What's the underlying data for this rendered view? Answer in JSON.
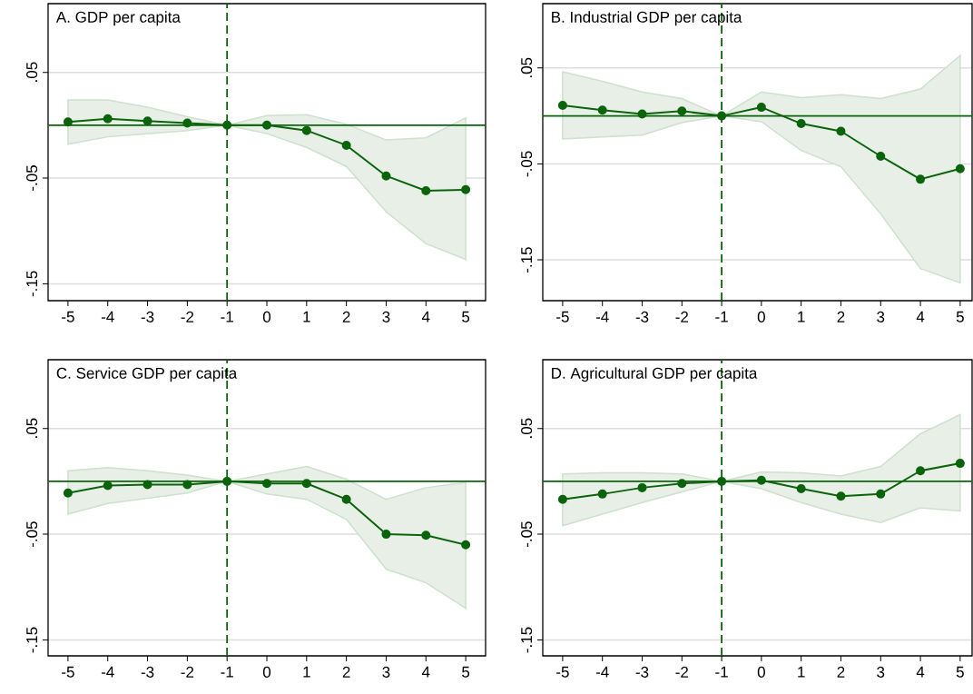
{
  "chart_data": [
    {
      "type": "line",
      "title": "A. GDP per capita",
      "x": [
        -5,
        -4,
        -3,
        -2,
        -1,
        0,
        1,
        2,
        3,
        4,
        5
      ],
      "xlim": [
        -5.5,
        5.5
      ],
      "ylim": [
        -0.166,
        0.115
      ],
      "xticks": [
        -5,
        -4,
        -3,
        -2,
        -1,
        0,
        1,
        2,
        3,
        4,
        5
      ],
      "yticks": [
        {
          "value": 0.05,
          "label": ".05"
        },
        {
          "value": -0.05,
          "label": "-.05"
        },
        {
          "value": -0.15,
          "label": "-.15"
        }
      ],
      "grid": "y",
      "marker": "circle",
      "ref_lines": [
        {
          "axis": "y",
          "value": 0,
          "color": "#0b640b"
        },
        {
          "axis": "x",
          "value": -1,
          "color": "#0b640b",
          "line_style": "dashed"
        }
      ],
      "series": [
        {
          "color": "#0b640b",
          "values": [
            0.003,
            0.006,
            0.004,
            0.002,
            0,
            0,
            -0.005,
            -0.019,
            -0.048,
            -0.062,
            -0.061
          ],
          "lower": [
            -0.018,
            -0.011,
            -0.008,
            -0.005,
            0,
            -0.008,
            -0.021,
            -0.039,
            -0.082,
            -0.112,
            -0.127
          ],
          "upper": [
            0.024,
            0.024,
            0.017,
            0.008,
            0,
            0.009,
            0.01,
            0.001,
            -0.014,
            -0.012,
            0.007
          ]
        }
      ]
    },
    {
      "type": "line",
      "title": "B. Industrial GDP per capita",
      "x": [
        -5,
        -4,
        -3,
        -2,
        -1,
        0,
        1,
        2,
        3,
        4,
        5
      ],
      "xlim": [
        -5.5,
        5.3
      ],
      "ylim": [
        -0.1925,
        0.117
      ],
      "xticks": [
        -5,
        -4,
        -3,
        -2,
        -1,
        0,
        1,
        2,
        3,
        4,
        5
      ],
      "yticks": [
        {
          "value": 0.05,
          "label": ".05"
        },
        {
          "value": -0.05,
          "label": "-.05"
        },
        {
          "value": -0.15,
          "label": "-.15"
        }
      ],
      "grid": "y",
      "marker": "circle",
      "ref_lines": [
        {
          "axis": "y",
          "value": 0,
          "color": "#0b640b"
        },
        {
          "axis": "x",
          "value": -1,
          "color": "#0b640b",
          "line_style": "dashed"
        }
      ],
      "series": [
        {
          "color": "#0b640b",
          "values": [
            0.011,
            0.006,
            0.002,
            0.005,
            0,
            0.009,
            -0.008,
            -0.016,
            -0.042,
            -0.066,
            -0.055
          ],
          "lower": [
            -0.024,
            -0.022,
            -0.02,
            -0.007,
            0,
            -0.006,
            -0.036,
            -0.053,
            -0.102,
            -0.159,
            -0.174
          ],
          "upper": [
            0.046,
            0.036,
            0.025,
            0.018,
            0,
            0.025,
            0.019,
            0.022,
            0.018,
            0.028,
            0.063
          ]
        }
      ]
    },
    {
      "type": "line",
      "title": "C. Service GDP per capita",
      "x": [
        -5,
        -4,
        -3,
        -2,
        -1,
        0,
        1,
        2,
        3,
        4,
        5
      ],
      "xlim": [
        -5.5,
        5.5
      ],
      "ylim": [
        -0.165,
        0.115
      ],
      "xticks": [
        -5,
        -4,
        -3,
        -2,
        -1,
        0,
        1,
        2,
        3,
        4,
        5
      ],
      "yticks": [
        {
          "value": 0.05,
          "label": ".05"
        },
        {
          "value": -0.05,
          "label": "-.05"
        },
        {
          "value": -0.15,
          "label": "-.15"
        }
      ],
      "grid": "y",
      "marker": "circle",
      "ref_lines": [
        {
          "axis": "y",
          "value": 0,
          "color": "#0b640b"
        },
        {
          "axis": "x",
          "value": -1,
          "color": "#0b640b",
          "line_style": "dashed"
        }
      ],
      "series": [
        {
          "color": "#0b640b",
          "values": [
            -0.011,
            -0.004,
            -0.003,
            -0.003,
            0,
            -0.002,
            -0.002,
            -0.017,
            -0.05,
            -0.051,
            -0.06
          ],
          "lower": [
            -0.031,
            -0.021,
            -0.016,
            -0.011,
            0,
            -0.012,
            -0.017,
            -0.036,
            -0.083,
            -0.096,
            -0.12
          ],
          "upper": [
            0.01,
            0.013,
            0.01,
            0.006,
            0,
            0.007,
            0.014,
            0.002,
            -0.017,
            -0.006,
            -0.001
          ]
        }
      ]
    },
    {
      "type": "line",
      "title": "D. Agricultural GDP per capita",
      "x": [
        -5,
        -4,
        -3,
        -2,
        -1,
        0,
        1,
        2,
        3,
        4,
        5
      ],
      "xlim": [
        -5.5,
        5.3
      ],
      "ylim": [
        -0.165,
        0.115
      ],
      "xticks": [
        -5,
        -4,
        -3,
        -2,
        -1,
        0,
        1,
        2,
        3,
        4,
        5
      ],
      "yticks": [
        {
          "value": 0.05,
          "label": ".05"
        },
        {
          "value": -0.05,
          "label": "-.05"
        },
        {
          "value": -0.15,
          "label": "-.15"
        }
      ],
      "grid": "y",
      "marker": "circle",
      "ref_lines": [
        {
          "axis": "y",
          "value": 0,
          "color": "#0b640b"
        },
        {
          "axis": "x",
          "value": -1,
          "color": "#0b640b",
          "line_style": "dashed"
        }
      ],
      "series": [
        {
          "color": "#0b640b",
          "values": [
            -0.017,
            -0.012,
            -0.006,
            -0.002,
            0,
            0.001,
            -0.007,
            -0.014,
            -0.012,
            0.01,
            0.017
          ],
          "lower": [
            -0.042,
            -0.031,
            -0.02,
            -0.01,
            0,
            -0.007,
            -0.02,
            -0.031,
            -0.039,
            -0.025,
            -0.028
          ],
          "upper": [
            0.007,
            0.008,
            0.008,
            0.007,
            0,
            0.009,
            0.008,
            0.005,
            0.014,
            0.045,
            0.063
          ]
        }
      ]
    }
  ]
}
